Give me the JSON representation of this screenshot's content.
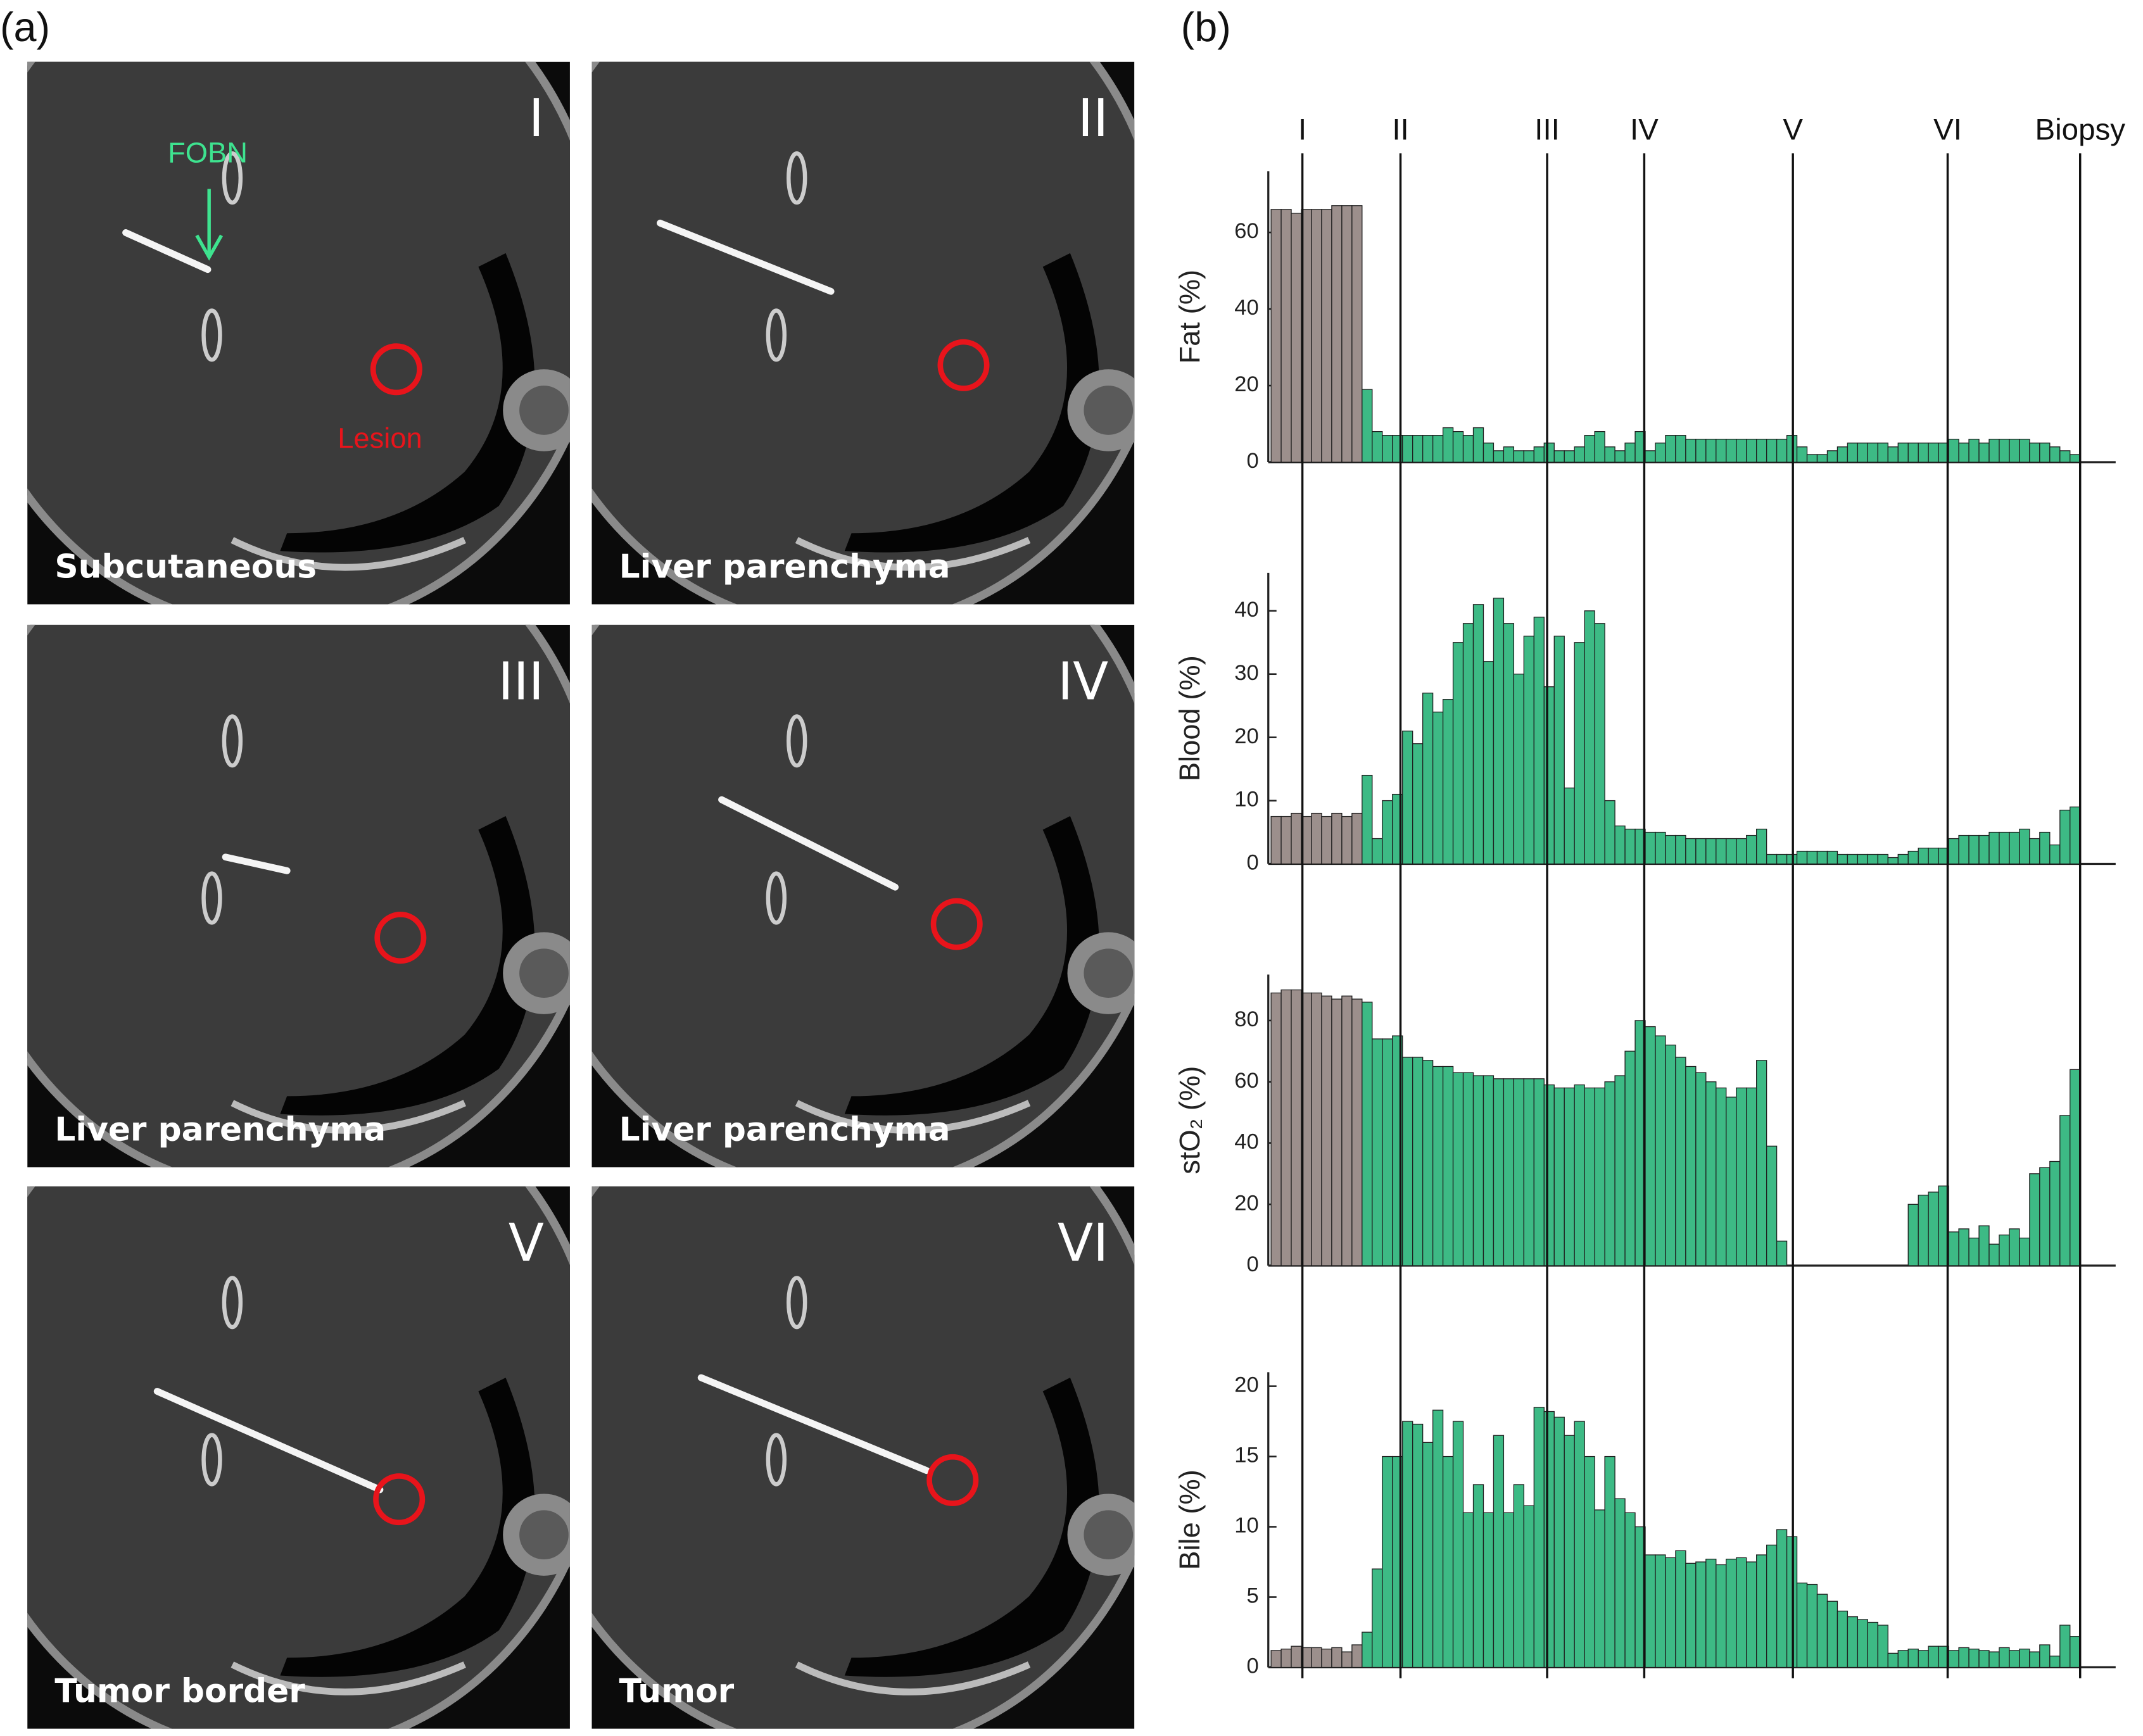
{
  "panel_labels": [
    "(a)",
    "(b)"
  ],
  "ct_images": [
    {
      "numeral": "I",
      "caption": "Subcutaneous"
    },
    {
      "numeral": "II",
      "caption": "Liver parenchyma"
    },
    {
      "numeral": "III",
      "caption": "Liver parenchyma"
    },
    {
      "numeral": "IV",
      "caption": "Liver parenchyma"
    },
    {
      "numeral": "V",
      "caption": "Tumor border"
    },
    {
      "numeral": "VI",
      "caption": "Tumor"
    }
  ],
  "annotations": {
    "needle": "FOBN",
    "lesion": "Lesion"
  },
  "chart_data": [
    {
      "type": "bar",
      "ylabel": "Fat (%)",
      "xlim": [
        0.5,
        80.5
      ],
      "ylim": [
        0,
        76
      ],
      "yticks": [
        0,
        20,
        40,
        60
      ],
      "xticks": [
        {
          "value": 3.6,
          "label": "I"
        },
        {
          "value": 13.3,
          "label": "II"
        },
        {
          "value": 27.8,
          "label": "III"
        },
        {
          "value": 37.4,
          "label": "IV"
        },
        {
          "value": 52.1,
          "label": "V"
        },
        {
          "value": 67.4,
          "label": "VI"
        },
        {
          "value": 80.5,
          "label": "Biopsy"
        }
      ],
      "series": [
        {
          "color": "#9c8f8c",
          "x": [
            1,
            2,
            3,
            4,
            5,
            6,
            7,
            8,
            9
          ],
          "values": [
            66,
            66,
            65,
            66,
            66,
            66,
            67,
            67,
            67
          ]
        },
        {
          "color": "#3dba85",
          "x": [
            10,
            11,
            12,
            13,
            14,
            15,
            16,
            17,
            18,
            19,
            20,
            21,
            22,
            23,
            24,
            25,
            26,
            27,
            28,
            29,
            30,
            31,
            32,
            33,
            34,
            35,
            36,
            37,
            38,
            39,
            40,
            41,
            42,
            43,
            44,
            45,
            46,
            47,
            48,
            49,
            50,
            51,
            52,
            53,
            54,
            55,
            56,
            57,
            58,
            59,
            60,
            61,
            62,
            63,
            64,
            65,
            66,
            67,
            68,
            69,
            70,
            71,
            72,
            73,
            74,
            75,
            76,
            77,
            78,
            79,
            80
          ],
          "values": [
            19,
            8,
            7,
            7,
            7,
            7,
            7,
            7,
            9,
            8,
            7,
            9,
            5,
            3,
            4,
            3,
            3,
            4,
            5,
            3,
            3,
            4,
            7,
            8,
            4,
            3,
            5,
            8,
            3,
            5,
            7,
            7,
            6,
            6,
            6,
            6,
            6,
            6,
            6,
            6,
            6,
            6,
            7,
            4,
            2,
            2,
            3,
            4,
            5,
            5,
            5,
            5,
            4,
            5,
            5,
            5,
            5,
            5,
            6,
            5,
            6,
            5,
            6,
            6,
            6,
            6,
            5,
            5,
            4,
            3,
            2
          ]
        }
      ]
    },
    {
      "type": "bar",
      "ylabel": "Blood (%)",
      "xlim": [
        0.5,
        80.5
      ],
      "ylim": [
        0,
        46
      ],
      "yticks": [
        0,
        10,
        20,
        30,
        40
      ],
      "xticks": [
        3.6,
        13.3,
        27.8,
        37.4,
        52.1,
        67.4,
        80.5
      ],
      "series": [
        {
          "color": "#9c8f8c",
          "x": [
            1,
            2,
            3,
            4,
            5,
            6,
            7,
            8,
            9
          ],
          "values": [
            7.5,
            7.5,
            8,
            7.5,
            8,
            7.5,
            8,
            7.5,
            8
          ]
        },
        {
          "color": "#3dba85",
          "x": [
            10,
            11,
            12,
            13,
            14,
            15,
            16,
            17,
            18,
            19,
            20,
            21,
            22,
            23,
            24,
            25,
            26,
            27,
            28,
            29,
            30,
            31,
            32,
            33,
            34,
            35,
            36,
            37,
            38,
            39,
            40,
            41,
            42,
            43,
            44,
            45,
            46,
            47,
            48,
            49,
            50,
            51,
            52,
            53,
            54,
            55,
            56,
            57,
            58,
            59,
            60,
            61,
            62,
            63,
            64,
            65,
            66,
            67,
            68,
            69,
            70,
            71,
            72,
            73,
            74,
            75,
            76,
            77,
            78,
            79,
            80
          ],
          "values": [
            14,
            4,
            10,
            11,
            21,
            19,
            27,
            24,
            26,
            35,
            38,
            41,
            32,
            42,
            38,
            30,
            36,
            39,
            28,
            36,
            12,
            35,
            40,
            38,
            10,
            6,
            5.5,
            5.5,
            5,
            5,
            4.5,
            4.5,
            4,
            4,
            4,
            4,
            4,
            4,
            4.5,
            5.5,
            1.5,
            1.5,
            1.5,
            2,
            2,
            2,
            2,
            1.5,
            1.5,
            1.5,
            1.5,
            1.5,
            1,
            1.5,
            2,
            2.5,
            2.5,
            2.5,
            4,
            4.5,
            4.5,
            4.5,
            5,
            5,
            5,
            5.5,
            4,
            5,
            3,
            8.5,
            9
          ]
        }
      ]
    },
    {
      "type": "bar",
      "ylabel": "stO₂ (%)",
      "xlim": [
        0.5,
        80.5
      ],
      "ylim": [
        0,
        95
      ],
      "yticks": [
        0,
        20,
        40,
        60,
        80
      ],
      "xticks": [
        3.6,
        13.3,
        27.8,
        37.4,
        52.1,
        67.4,
        80.5
      ],
      "series": [
        {
          "color": "#9c8f8c",
          "x": [
            1,
            2,
            3,
            4,
            5,
            6,
            7,
            8,
            9
          ],
          "values": [
            89,
            90,
            90,
            89,
            89,
            88,
            87,
            88,
            87
          ]
        },
        {
          "color": "#3dba85",
          "x": [
            10,
            11,
            12,
            13,
            14,
            15,
            16,
            17,
            18,
            19,
            20,
            21,
            22,
            23,
            24,
            25,
            26,
            27,
            28,
            29,
            30,
            31,
            32,
            33,
            34,
            35,
            36,
            37,
            38,
            39,
            40,
            41,
            42,
            43,
            44,
            45,
            46,
            47,
            48,
            49,
            50,
            51,
            52,
            53,
            54,
            55,
            56,
            57,
            58,
            59,
            60,
            61,
            62,
            63,
            64,
            65,
            66,
            67,
            68,
            69,
            70,
            71,
            72,
            73,
            74,
            75,
            76,
            77,
            78,
            79,
            80
          ],
          "values": [
            86,
            74,
            74,
            75,
            68,
            68,
            67,
            65,
            65,
            63,
            63,
            62,
            62,
            61,
            61,
            61,
            61,
            61,
            59,
            58,
            58,
            59,
            58,
            58,
            60,
            62,
            70,
            80,
            78,
            75,
            72,
            68,
            65,
            63,
            60,
            58,
            55,
            58,
            58,
            67,
            39,
            8,
            0,
            0,
            0,
            0,
            0,
            0,
            0,
            0,
            0,
            0,
            0,
            0,
            20,
            23,
            24,
            26,
            11,
            12,
            9,
            13,
            7,
            10,
            12,
            9,
            30,
            32,
            34,
            49,
            64
          ]
        }
      ]
    },
    {
      "type": "bar",
      "ylabel": "Bile (%)",
      "xlim": [
        0.5,
        80.5
      ],
      "ylim": [
        0,
        21
      ],
      "yticks": [
        0,
        5,
        10,
        15,
        20
      ],
      "xticks": [
        3.6,
        13.3,
        27.8,
        37.4,
        52.1,
        67.4,
        80.5
      ],
      "series": [
        {
          "color": "#9c8f8c",
          "x": [
            1,
            2,
            3,
            4,
            5,
            6,
            7,
            8,
            9
          ],
          "values": [
            1.2,
            1.3,
            1.5,
            1.4,
            1.4,
            1.3,
            1.4,
            1.1,
            1.6
          ]
        },
        {
          "color": "#3dba85",
          "x": [
            10,
            11,
            12,
            13,
            14,
            15,
            16,
            17,
            18,
            19,
            20,
            21,
            22,
            23,
            24,
            25,
            26,
            27,
            28,
            29,
            30,
            31,
            32,
            33,
            34,
            35,
            36,
            37,
            38,
            39,
            40,
            41,
            42,
            43,
            44,
            45,
            46,
            47,
            48,
            49,
            50,
            51,
            52,
            53,
            54,
            55,
            56,
            57,
            58,
            59,
            60,
            61,
            62,
            63,
            64,
            65,
            66,
            67,
            68,
            69,
            70,
            71,
            72,
            73,
            74,
            75,
            76,
            77,
            78,
            79,
            80
          ],
          "values": [
            2.5,
            7,
            15,
            15,
            17.5,
            17.3,
            16,
            18.3,
            15,
            17.5,
            11,
            13,
            11,
            16.5,
            11,
            13,
            11.5,
            18.5,
            18.2,
            17.8,
            16.5,
            17.5,
            15,
            11.2,
            15,
            12,
            11,
            10,
            8,
            8,
            7.8,
            8.3,
            7.4,
            7.5,
            7.7,
            7.3,
            7.7,
            7.8,
            7.5,
            8,
            8.7,
            9.8,
            9.3,
            6,
            5.9,
            5.2,
            4.7,
            4,
            3.6,
            3.4,
            3.2,
            3,
            1,
            1.2,
            1.3,
            1.2,
            1.5,
            1.5,
            1.2,
            1.4,
            1.3,
            1.2,
            1.1,
            1.4,
            1.2,
            1.3,
            1.1,
            1.6,
            0.8,
            3,
            2.2
          ]
        }
      ]
    }
  ]
}
